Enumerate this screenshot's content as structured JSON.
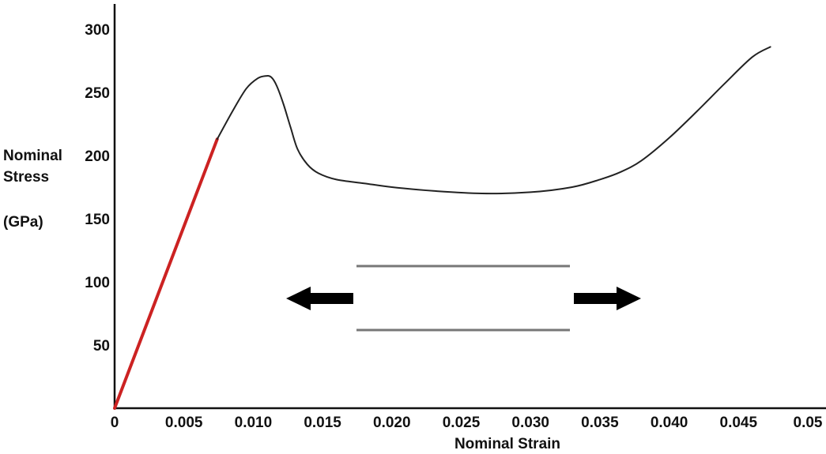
{
  "chart_data": {
    "type": "line",
    "xlabel": "Nominal Strain",
    "ylabel": [
      "Nominal",
      "Stress",
      "(GPa)"
    ],
    "xlim": [
      0,
      0.05
    ],
    "ylim": [
      0,
      300
    ],
    "x_ticks": [
      0,
      0.005,
      0.01,
      0.015,
      0.02,
      0.025,
      0.03,
      0.035,
      0.04,
      0.045,
      0.05
    ],
    "x_tick_labels": [
      "0",
      "0.005",
      "0.010",
      "0.015",
      "0.020",
      "0.025",
      "0.030",
      "0.035",
      "0.040",
      "0.045",
      "0.05"
    ],
    "y_ticks": [
      50,
      100,
      150,
      200,
      250,
      300
    ],
    "y_tick_labels": [
      "50",
      "100",
      "150",
      "200",
      "250",
      "300"
    ],
    "grid": false,
    "series": [
      {
        "color": "#cc2222",
        "x": [
          0,
          0.0074
        ],
        "y": [
          0,
          213
        ]
      },
      {
        "color": "#222222",
        "x": [
          0.0074,
          0.0085,
          0.0095,
          0.0103,
          0.0109,
          0.0113,
          0.0117,
          0.0122,
          0.0127,
          0.0132,
          0.0139,
          0.0147,
          0.016,
          0.018,
          0.02,
          0.023,
          0.0265,
          0.03,
          0.033,
          0.035,
          0.0365,
          0.038,
          0.04,
          0.042,
          0.044,
          0.046,
          0.0473
        ],
        "y": [
          213,
          235,
          253,
          261,
          263,
          262,
          255,
          240,
          222,
          205,
          193,
          186,
          181,
          178,
          175,
          172,
          170,
          171,
          175,
          181,
          187,
          196,
          214,
          235,
          257,
          278,
          286
        ]
      }
    ],
    "annotation": {
      "description_icons": [
        "left-arrow-icon",
        "right-arrow-icon"
      ],
      "specimen_color": "#777777",
      "arrow_color": "#000000"
    }
  }
}
